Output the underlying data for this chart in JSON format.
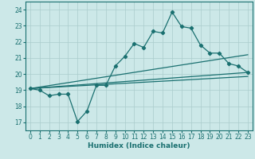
{
  "xlabel": "Humidex (Indice chaleur)",
  "bg_color": "#cce8e8",
  "grid_color": "#aacccc",
  "line_color": "#1a7070",
  "xlim": [
    -0.5,
    23.5
  ],
  "ylim": [
    16.5,
    24.5
  ],
  "xticks": [
    0,
    1,
    2,
    3,
    4,
    5,
    6,
    7,
    8,
    9,
    10,
    11,
    12,
    13,
    14,
    15,
    16,
    17,
    18,
    19,
    20,
    21,
    22,
    23
  ],
  "yticks": [
    17,
    18,
    19,
    20,
    21,
    22,
    23,
    24
  ],
  "main_x": [
    0,
    1,
    2,
    3,
    4,
    5,
    6,
    7,
    8,
    9,
    10,
    11,
    12,
    13,
    14,
    15,
    16,
    17,
    18,
    19,
    20,
    21,
    22,
    23
  ],
  "main_y": [
    19.1,
    19.0,
    18.65,
    18.75,
    18.75,
    17.05,
    17.7,
    19.3,
    19.3,
    20.5,
    21.1,
    21.9,
    21.65,
    22.65,
    22.55,
    23.85,
    22.95,
    22.85,
    21.8,
    21.3,
    21.3,
    20.65,
    20.5,
    20.1
  ],
  "line1_x": [
    0,
    23
  ],
  "line1_y": [
    19.1,
    21.2
  ],
  "line2_x": [
    0,
    23
  ],
  "line2_y": [
    19.1,
    20.1
  ],
  "line3_x": [
    0,
    23
  ],
  "line3_y": [
    19.1,
    19.85
  ]
}
